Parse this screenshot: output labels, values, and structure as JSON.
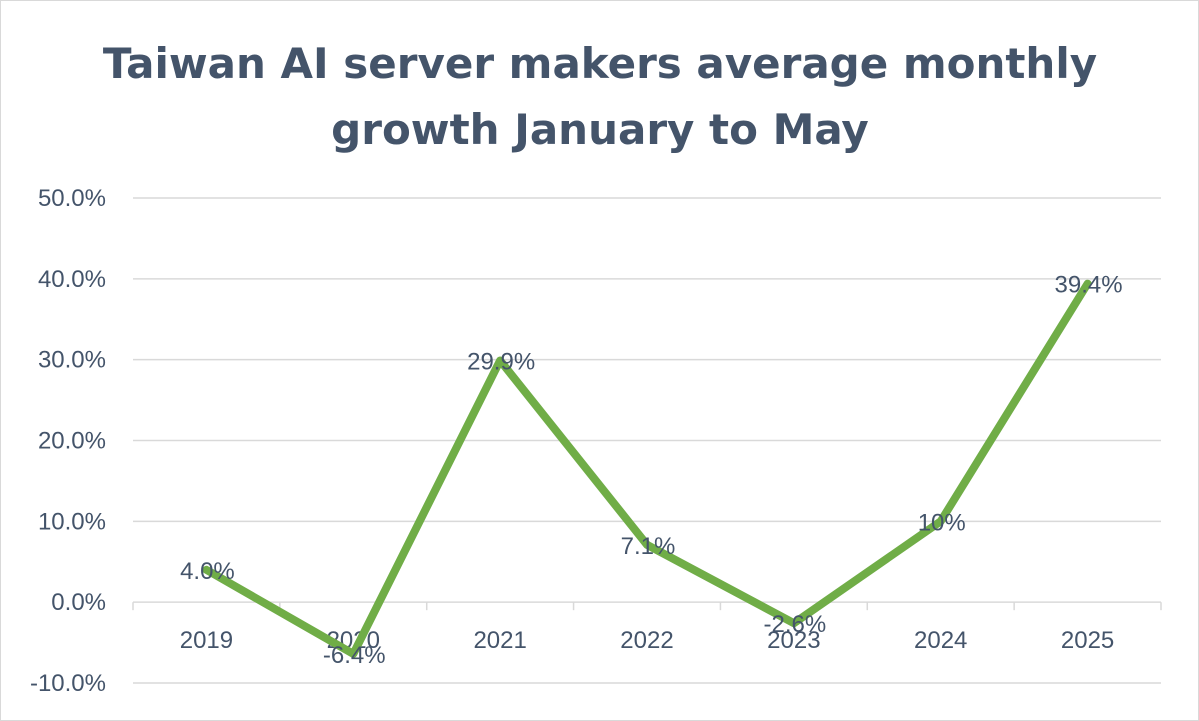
{
  "chart_data": {
    "type": "line",
    "title": "Taiwan AI server makers average monthly growth January to May",
    "title_lines": [
      "Taiwan AI server makers average monthly",
      "growth January to May"
    ],
    "categories": [
      "2019",
      "2020",
      "2021",
      "2022",
      "2023",
      "2024",
      "2025"
    ],
    "series": [
      {
        "values": [
          4.0,
          -6.4,
          29.9,
          7.1,
          -2.6,
          10,
          39.4
        ],
        "data_labels": [
          "4.0%",
          "-6.4%",
          "29.9%",
          "7.1%",
          "-2.6%",
          "10%",
          "39.4%"
        ],
        "color": "#70ad47"
      }
    ],
    "ylim": [
      -10,
      50
    ],
    "yticks": [
      -10,
      0,
      10,
      20,
      30,
      40,
      50
    ],
    "ytick_labels": [
      "-10.0%",
      "0.0%",
      "10.0%",
      "20.0%",
      "30.0%",
      "40.0%",
      "50.0%"
    ],
    "xlabel": "",
    "ylabel": "",
    "grid": true,
    "legend": "none"
  },
  "colors": {
    "title": "#44546a",
    "text": "#44546a",
    "grid": "#d9d9d9",
    "line": "#70ad47"
  }
}
